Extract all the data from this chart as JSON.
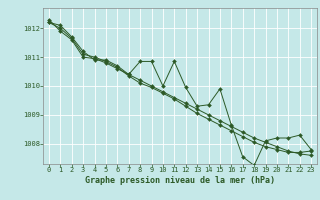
{
  "title": "Graphe pression niveau de la mer (hPa)",
  "bg_color": "#c5e8e8",
  "grid_color": "#ffffff",
  "line_color": "#2d5a27",
  "marker_color": "#2d5a27",
  "ylabel_ticks": [
    1008,
    1009,
    1010,
    1011,
    1012
  ],
  "xticks": [
    0,
    1,
    2,
    3,
    4,
    5,
    6,
    7,
    8,
    9,
    10,
    11,
    12,
    13,
    14,
    15,
    16,
    17,
    18,
    19,
    20,
    21,
    22,
    23
  ],
  "ylim": [
    1007.3,
    1012.7
  ],
  "xlim": [
    -0.5,
    23.5
  ],
  "series1": [
    1012.2,
    1012.1,
    1011.7,
    1011.2,
    1010.9,
    1010.9,
    1010.7,
    1010.4,
    1010.85,
    1010.85,
    1010.0,
    1010.85,
    1009.95,
    1009.3,
    1009.35,
    1009.9,
    1008.65,
    1007.55,
    1007.25,
    1008.1,
    1008.2,
    1008.2,
    1008.3,
    1007.8
  ],
  "series2": [
    1012.2,
    1012.0,
    1011.65,
    1011.1,
    1011.0,
    1010.85,
    1010.65,
    1010.35,
    1010.1,
    1009.95,
    1009.75,
    1009.55,
    1009.3,
    1009.05,
    1008.85,
    1008.65,
    1008.45,
    1008.25,
    1008.05,
    1007.9,
    1007.8,
    1007.7,
    1007.7,
    1007.75
  ],
  "series3": [
    1012.3,
    1011.9,
    1011.6,
    1011.0,
    1010.95,
    1010.8,
    1010.6,
    1010.4,
    1010.2,
    1010.0,
    1009.8,
    1009.6,
    1009.4,
    1009.2,
    1009.0,
    1008.8,
    1008.6,
    1008.4,
    1008.2,
    1008.05,
    1007.9,
    1007.75,
    1007.65,
    1007.6
  ],
  "tick_fontsize": 5,
  "label_fontsize": 6,
  "lw": 0.7,
  "ms": 2.0
}
